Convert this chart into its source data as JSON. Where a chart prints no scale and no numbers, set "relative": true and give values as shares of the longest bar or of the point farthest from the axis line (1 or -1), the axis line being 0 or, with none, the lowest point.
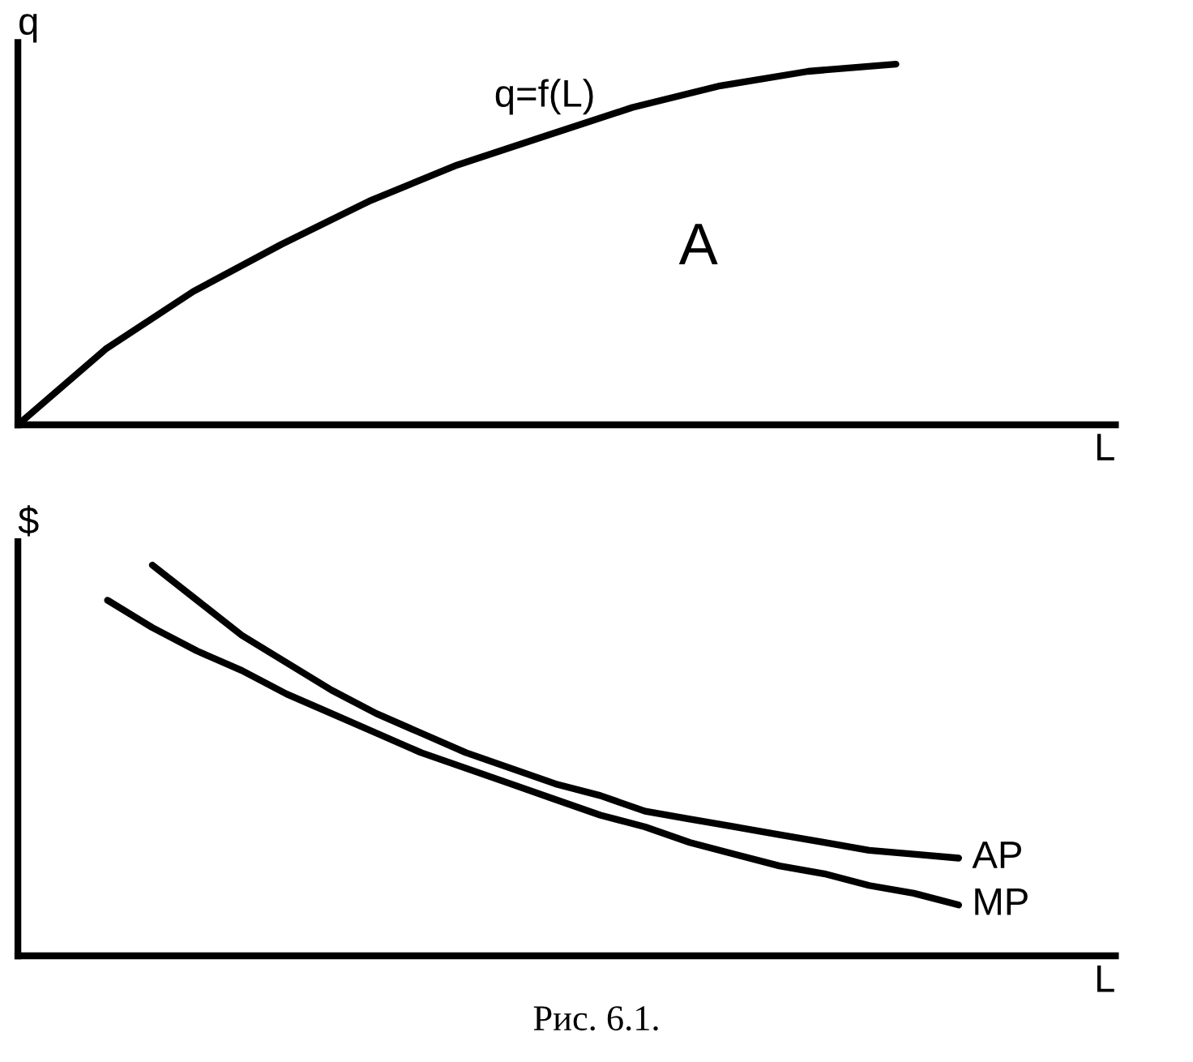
{
  "chart_data": [
    {
      "type": "line",
      "relative": true,
      "ylabel": "q",
      "xlabel": "L",
      "categories": [
        null,
        null,
        null,
        null,
        null,
        null,
        null,
        null,
        null,
        null,
        null,
        null,
        null
      ],
      "series": [
        {
          "name": "q=f(L)",
          "color": "#000000",
          "values": [
            0,
            0.21,
            0.37,
            0.5,
            0.62,
            0.72,
            0.8,
            0.88,
            0.94,
            0.98,
            1,
            null,
            null
          ]
        }
      ],
      "annotations": [
        "A"
      ]
    },
    {
      "type": "line",
      "relative": true,
      "ylabel": "$",
      "xlabel": "L",
      "categories": [
        null,
        null,
        null,
        null,
        null,
        null,
        null,
        null,
        null,
        null,
        null,
        null,
        null,
        null,
        null,
        null,
        null,
        null,
        null,
        null,
        null,
        null,
        null,
        null,
        null
      ],
      "series": [
        {
          "name": "AP",
          "color": "#000000",
          "values": [
            null,
            null,
            null,
            1.0,
            0.91,
            0.82,
            0.75,
            0.68,
            0.62,
            0.57,
            0.52,
            0.48,
            0.44,
            0.41,
            0.37,
            0.35,
            0.33,
            0.31,
            0.29,
            0.27,
            0.26,
            0.25,
            null,
            null,
            null
          ]
        },
        {
          "name": "MP",
          "color": "#000000",
          "values": [
            null,
            null,
            0.91,
            0.84,
            0.78,
            0.73,
            0.67,
            0.62,
            0.57,
            0.52,
            0.48,
            0.44,
            0.4,
            0.36,
            0.33,
            0.29,
            0.26,
            0.23,
            0.21,
            0.18,
            0.16,
            0.13,
            null,
            null,
            null
          ]
        }
      ],
      "annotations": [
        "Рис. 6.1."
      ]
    }
  ]
}
